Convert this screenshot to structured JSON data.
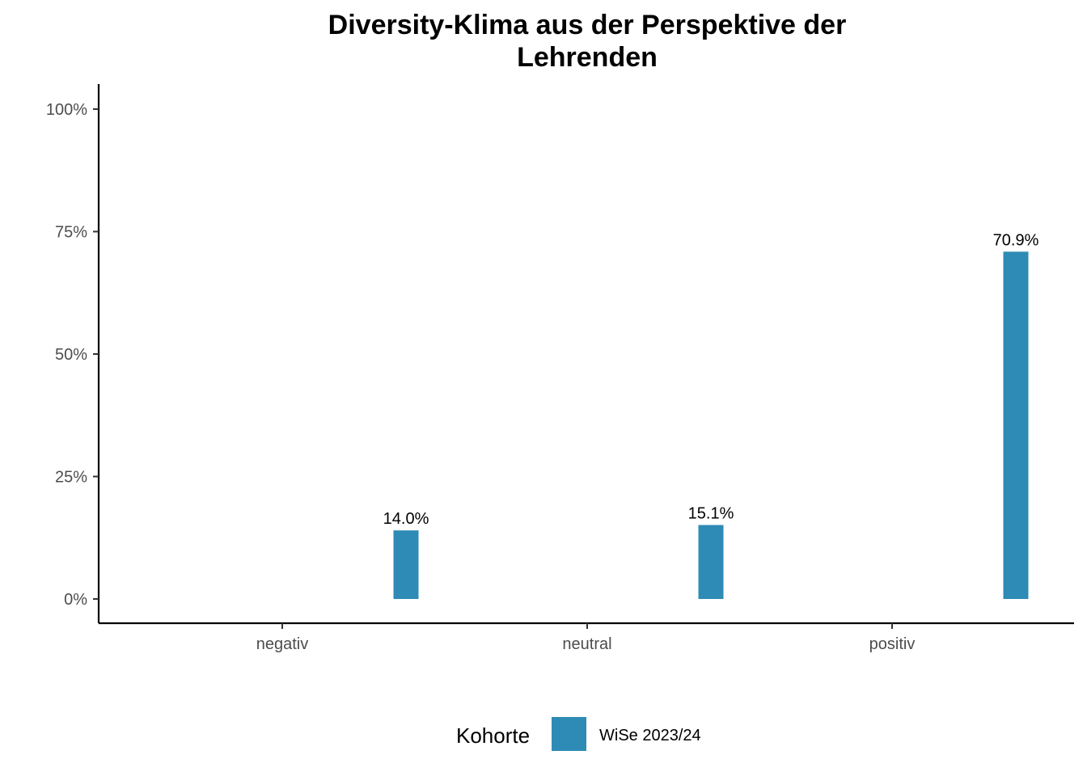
{
  "chart_data": {
    "type": "bar",
    "title_lines": [
      "Diversity-Klima aus der Perspektive der",
      "Lehrenden"
    ],
    "categories": [
      "negativ",
      "neutral",
      "positiv"
    ],
    "series": [
      {
        "name": "WiSe 2023/24",
        "color": "#2e8bb5",
        "values": [
          14.0,
          15.1,
          70.9
        ]
      }
    ],
    "data_labels": [
      "14.0%",
      "15.1%",
      "70.9%"
    ],
    "ylim": [
      0,
      100
    ],
    "yticks": [
      0,
      25,
      50,
      75,
      100
    ],
    "ytick_labels": [
      "0%",
      "25%",
      "50%",
      "75%",
      "100%"
    ],
    "xlabel": "",
    "ylabel": "",
    "grid": false,
    "legend": {
      "title": "Kohorte",
      "position": "bottom"
    }
  }
}
